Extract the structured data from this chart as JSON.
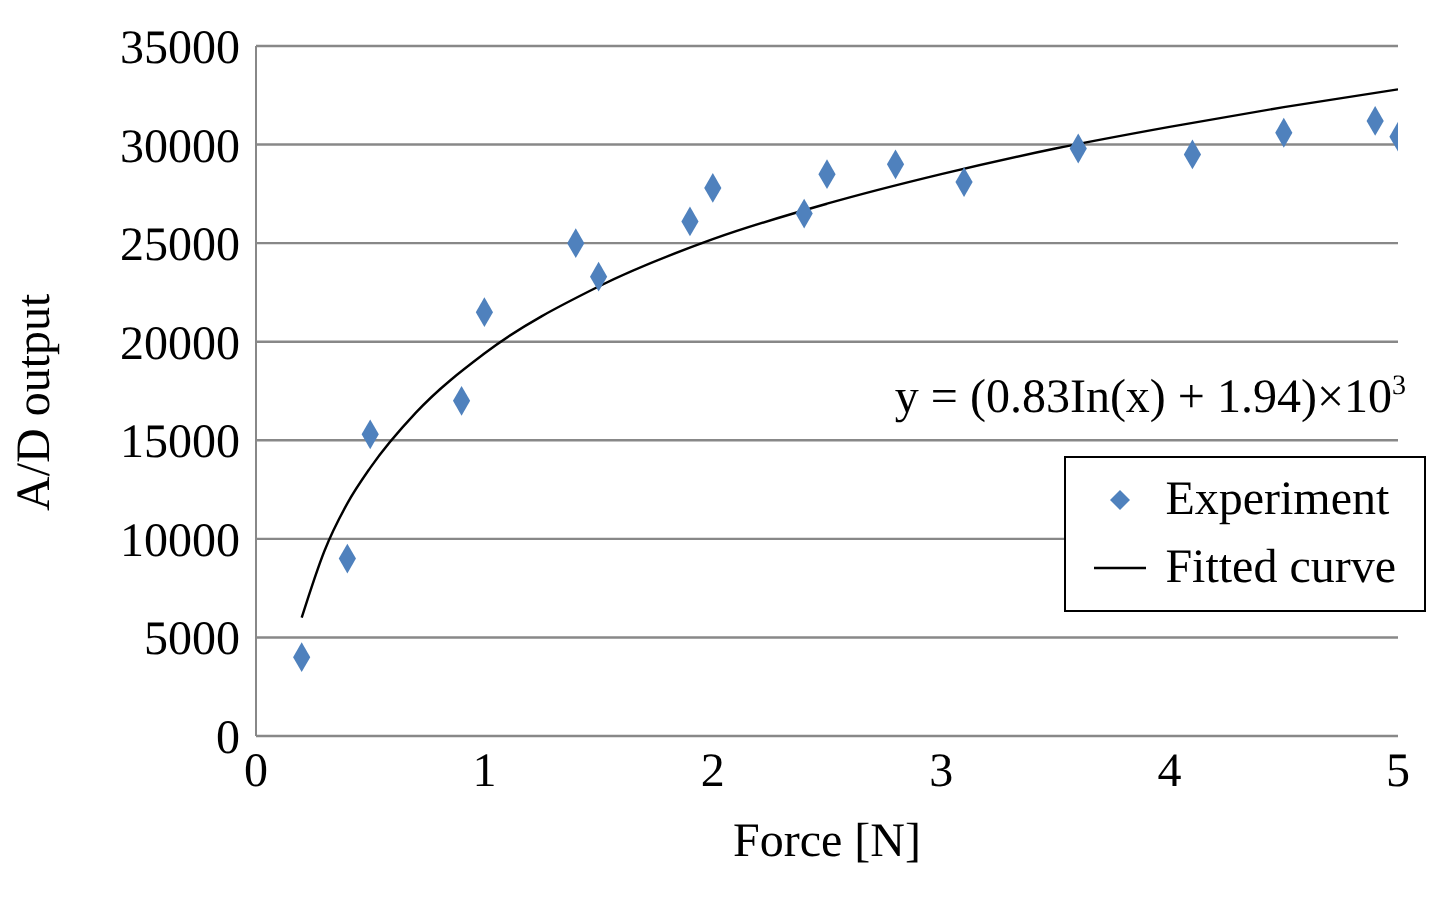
{
  "chart_data": {
    "type": "scatter",
    "xlabel": "Force [N]",
    "ylabel": "A/D output",
    "xlim": [
      0,
      5
    ],
    "xticks": [
      0,
      1,
      2,
      3,
      4,
      5
    ],
    "ylim": [
      0,
      35000
    ],
    "yticks": [
      0,
      5000,
      10000,
      15000,
      20000,
      25000,
      30000,
      35000
    ],
    "grid": "y",
    "legend": "bottom right",
    "annotations": [
      "y = (0.83In(x) + 1.94)×10$^{3}$"
    ],
    "series": [
      {
        "name": "Experiment",
        "marker": "diamond",
        "color": "#4f81bd",
        "x": [
          0.2,
          0.4,
          0.5,
          0.9,
          1.0,
          1.4,
          1.5,
          1.9,
          2.0,
          2.4,
          2.5,
          2.8,
          3.1,
          3.6,
          4.1,
          4.5,
          4.9,
          5.0
        ],
        "values": [
          4000,
          9000,
          15300,
          17000,
          21500,
          25000,
          23300,
          26100,
          27800,
          26500,
          28500,
          29000,
          28100,
          29800,
          29500,
          30600,
          31200,
          30400
        ]
      },
      {
        "name": "Fitted curve",
        "type": "line",
        "marker": "none",
        "line_style": "solid",
        "color": "#000000",
        "x": [
          0.2,
          0.3,
          0.4,
          0.5,
          0.7,
          1.0,
          1.5,
          2.0,
          2.5,
          3.0,
          3.5,
          4.0,
          4.5,
          5.0
        ],
        "values": [
          6000,
          9400,
          11800,
          13600,
          16400,
          19400,
          22800,
          25200,
          27000,
          28500,
          29800,
          30900,
          31900,
          32800
        ]
      }
    ]
  }
}
